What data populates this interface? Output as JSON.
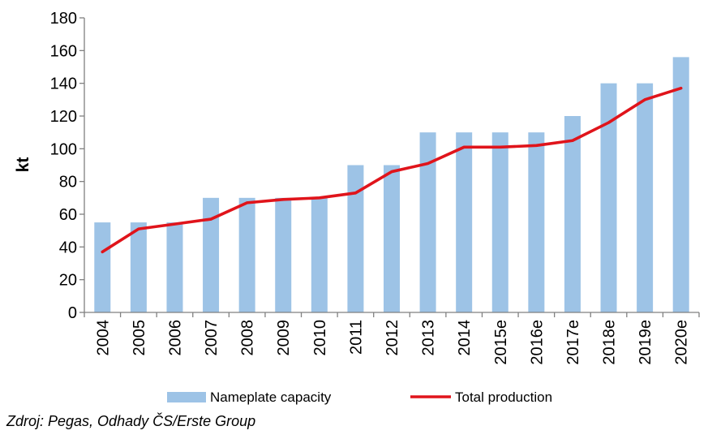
{
  "chart_data": {
    "type": "bar",
    "ylabel": "kt",
    "xlabel": "",
    "ylim": [
      0,
      180
    ],
    "yticks": [
      0,
      20,
      40,
      60,
      80,
      100,
      120,
      140,
      160,
      180
    ],
    "grid": false,
    "legend_position": "bottom",
    "categories": [
      "2004",
      "2005",
      "2006",
      "2007",
      "2008",
      "2009",
      "2010",
      "2011",
      "2012",
      "2013",
      "2014",
      "2015e",
      "2016e",
      "2017e",
      "2018e",
      "2019e",
      "2020e"
    ],
    "series": [
      {
        "name": "Nameplate capacity",
        "type": "bar",
        "color": "#9DC3E6",
        "values": [
          55,
          55,
          55,
          70,
          70,
          70,
          70,
          90,
          90,
          110,
          110,
          110,
          110,
          120,
          140,
          140,
          156
        ]
      },
      {
        "name": "Total production",
        "type": "line",
        "color": "#E0141B",
        "values": [
          37,
          51,
          54,
          57,
          67,
          69,
          70,
          73,
          86,
          91,
          101,
          101,
          102,
          105,
          116,
          130,
          137
        ]
      }
    ]
  },
  "source_note": "Zdroj: Pegas, Odhady ČS/Erste Group"
}
